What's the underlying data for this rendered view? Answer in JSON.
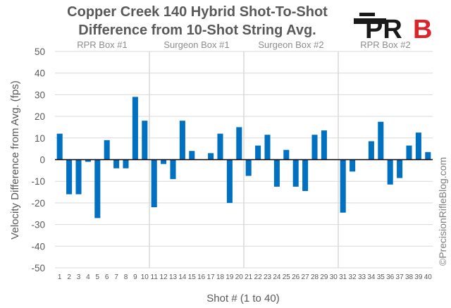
{
  "logo": {
    "text_left": "PR",
    "text_right": "B",
    "accent": "#d7262d",
    "dark": "#1a1a1a"
  },
  "watermark": "©PrecisionRifleBlog.com",
  "chart_data": {
    "type": "bar",
    "title_lines": [
      "Copper Creek 140 Hybrid Shot-To-Shot",
      "Difference from 10-Shot String Avg."
    ],
    "xlabel": "Shot # (1 to 40)",
    "ylabel": "Velocity Difference from Avg. (fps)",
    "ylim": [
      -50,
      50
    ],
    "yticks": [
      50,
      40,
      30,
      20,
      10,
      0,
      -10,
      -20,
      -30,
      -40,
      -50
    ],
    "grid": true,
    "bar_color": "#0070c0",
    "categories": [
      "1",
      "2",
      "3",
      "4",
      "5",
      "6",
      "7",
      "8",
      "9",
      "10",
      "11",
      "12",
      "13",
      "14",
      "15",
      "16",
      "17",
      "18",
      "19",
      "20",
      "21",
      "22",
      "23",
      "24",
      "25",
      "26",
      "27",
      "28",
      "29",
      "30",
      "31",
      "32",
      "33",
      "34",
      "35",
      "36",
      "37",
      "38",
      "39",
      "40"
    ],
    "values": [
      12,
      -16,
      -16,
      -1,
      -27,
      9,
      -4,
      -4,
      29,
      18,
      -22,
      -2,
      -9,
      18,
      4,
      0,
      3,
      12,
      -20,
      15,
      -7.5,
      6.5,
      11.5,
      -12.5,
      4.5,
      -12.5,
      -14.5,
      11.5,
      13.5,
      0,
      -24.5,
      -5.5,
      0,
      8.5,
      17.5,
      -11.5,
      -8.5,
      6.5,
      12.5,
      3.5
    ],
    "groups": [
      {
        "label": "RPR Box #1",
        "start": 1,
        "end": 10
      },
      {
        "label": "Surgeon Box #1",
        "start": 11,
        "end": 20
      },
      {
        "label": "Surgeon Box #2",
        "start": 21,
        "end": 30
      },
      {
        "label": "RPR Box #2",
        "start": 31,
        "end": 40
      }
    ]
  }
}
